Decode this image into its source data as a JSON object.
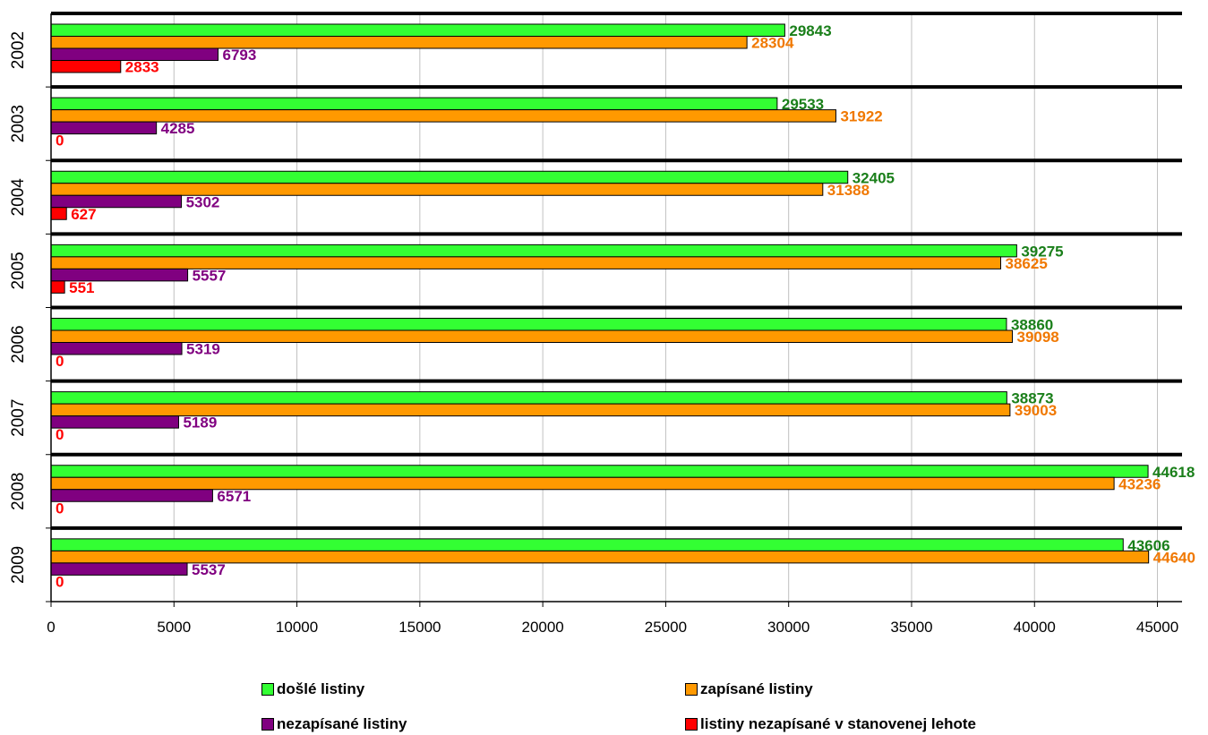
{
  "chart_data": {
    "type": "bar",
    "orientation": "horizontal",
    "categories": [
      "2002",
      "2003",
      "2004",
      "2005",
      "2006",
      "2007",
      "2008",
      "2009"
    ],
    "series": [
      {
        "name": "došlé listiny",
        "color": "#33ff33",
        "label_color": "#1a7f1a",
        "values": [
          29843,
          29533,
          32405,
          39275,
          38860,
          38873,
          44618,
          43606
        ]
      },
      {
        "name": "zapísané listiny",
        "color": "#ff9900",
        "label_color": "#f07800",
        "values": [
          28304,
          31922,
          31388,
          38625,
          39098,
          39003,
          43236,
          44640
        ]
      },
      {
        "name": "nezapísané listiny",
        "color": "#800080",
        "label_color": "#800080",
        "values": [
          6793,
          4285,
          5302,
          5557,
          5319,
          5189,
          6571,
          5537
        ]
      },
      {
        "name": "listiny nezapísané v stanovenej lehote",
        "color": "#ff0000",
        "label_color": "#ff0000",
        "values": [
          2833,
          0,
          627,
          551,
          0,
          0,
          0,
          0
        ]
      }
    ],
    "x_ticks": [
      "0",
      "5000",
      "10000",
      "15000",
      "20000",
      "25000",
      "30000",
      "35000",
      "40000",
      "45000"
    ],
    "xlim": [
      0,
      46000
    ],
    "grid": "vertical",
    "legend_position": "bottom",
    "title": "",
    "xlabel": "",
    "ylabel": ""
  }
}
